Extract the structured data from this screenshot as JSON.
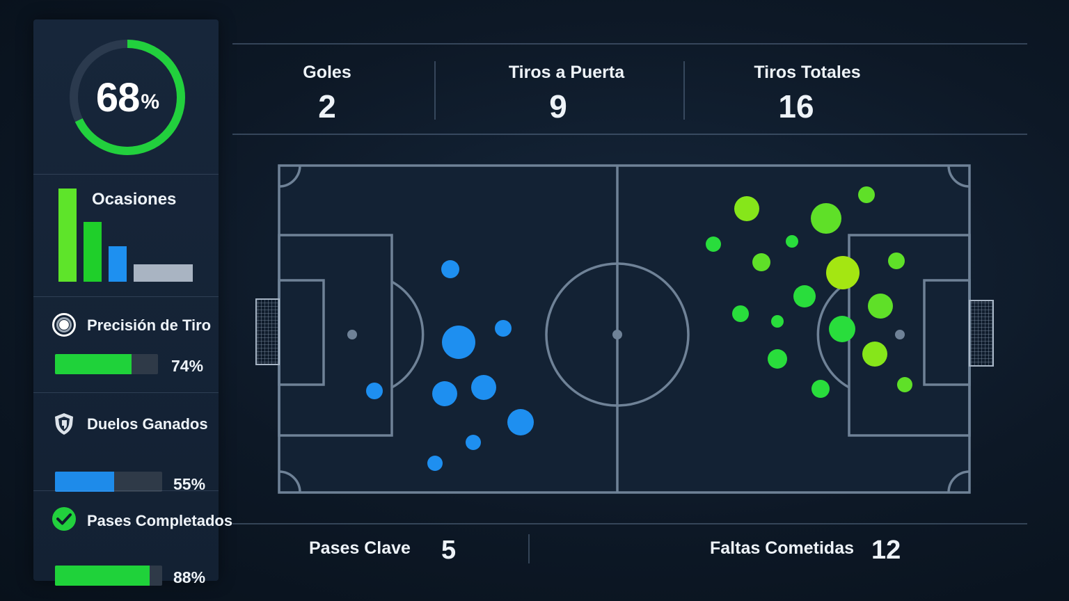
{
  "possession": {
    "value": 68,
    "value_text": "68",
    "unit": "%",
    "color": "#22d03d"
  },
  "occasions": {
    "title": "Ocasiones",
    "bars": [
      {
        "color": "#5ee42a",
        "level": 1.0
      },
      {
        "color": "#1fcf2a",
        "level": 0.64
      },
      {
        "color": "#1e90f0",
        "level": 0.38
      },
      {
        "color": "#a9b4c2",
        "level": 0.19
      }
    ]
  },
  "stats": [
    {
      "label": "Precisión de Tiro",
      "value_text": "74%",
      "value": 0.74,
      "color": "#1fd23a",
      "icon": "target-icon"
    },
    {
      "label": "Duelos Ganados",
      "value_text": "55%",
      "value": 0.55,
      "color": "#1e8bea",
      "icon": "shield-icon"
    },
    {
      "label": "Pases Completados",
      "value_text": "88%",
      "value": 0.88,
      "color": "#1fd23a",
      "icon": "checkmark-icon"
    }
  ],
  "kpis": [
    {
      "label": "Goles",
      "value": "2"
    },
    {
      "label": "Tiros a Puerta",
      "value": "9"
    },
    {
      "label": "Tiros Totales",
      "value": "16"
    }
  ],
  "footer": [
    {
      "label": "Pases Clave",
      "value": "5"
    },
    {
      "label": "Faltas Cometidas",
      "value": "12"
    }
  ],
  "colors": {
    "home": "#1e8ff0",
    "away": "#29dd3c",
    "away_alt": "#86e61a",
    "pitch_line": "#6f8297"
  }
}
